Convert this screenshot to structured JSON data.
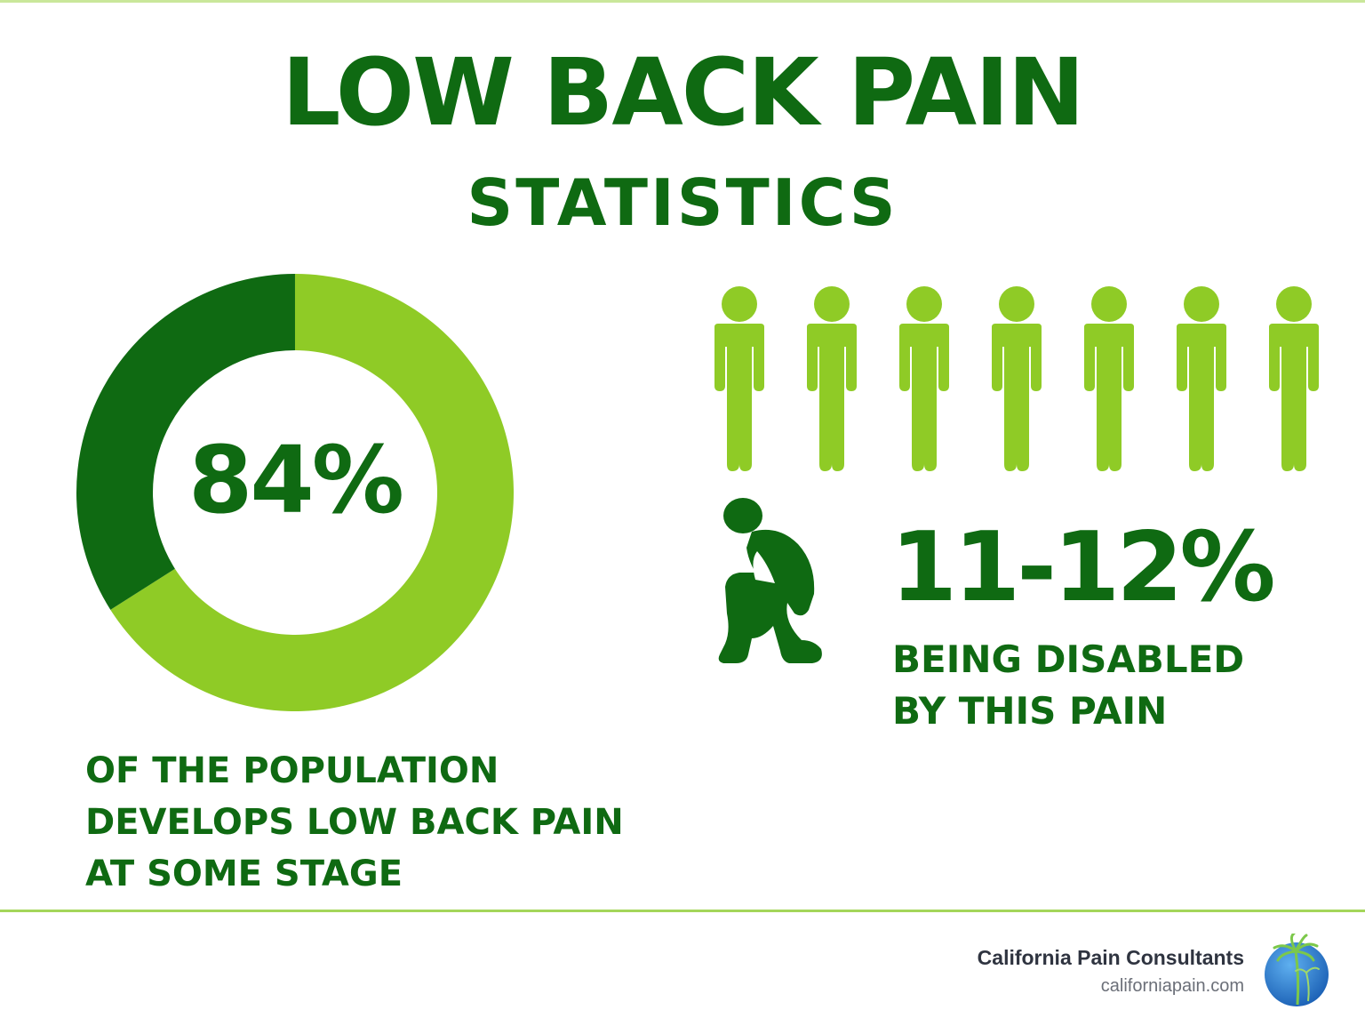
{
  "header": {
    "title": "LOW BACK PAIN",
    "subtitle": "STATISTICS"
  },
  "stat_population": {
    "value": "84%",
    "percent": 84,
    "lines": [
      "OF THE POPULATION",
      "DEVELOPS LOW BACK PAIN",
      "AT SOME STAGE"
    ]
  },
  "stat_disabled": {
    "value": "11-12%",
    "lines": [
      "BEING DISABLED",
      "BY THIS PAIN"
    ],
    "standing_figures_count": 7
  },
  "footer": {
    "brand": "California Pain Consultants",
    "url": "californiapain.com"
  },
  "colors": {
    "dark_green": "#0f6a12",
    "light_green": "#8fcb26",
    "rule_green": "#a4d65a",
    "logo_blue": "#2a7fd4"
  },
  "icons": [
    "person-standing-icon",
    "person-crouching-icon",
    "palm-tree-logo-icon"
  ]
}
